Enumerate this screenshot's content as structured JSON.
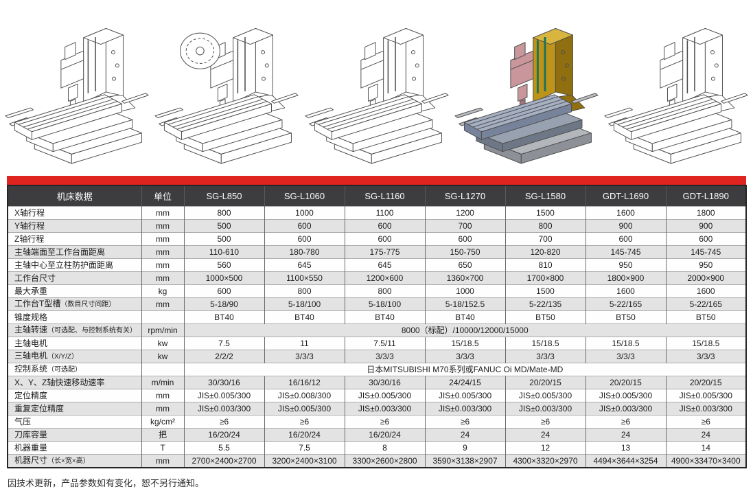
{
  "palette": {
    "accent-red": "#df241f",
    "header-bg": "#3d3d3f",
    "header-text": "#ffffff",
    "row-bg": "#fefefe",
    "row-alt-bg": "#e3e3e3"
  },
  "gallery": {
    "items": [
      {
        "alt": "立式加工中心线框图 1",
        "style": "line"
      },
      {
        "alt": "立式加工中心线框图 2 带刀库圆盘",
        "style": "line-disc"
      },
      {
        "alt": "立式加工中心线框图 3",
        "style": "line"
      },
      {
        "alt": "立式加工中心彩色渲染图",
        "style": "colored"
      },
      {
        "alt": "立式加工中心线框图 5",
        "style": "line"
      }
    ]
  },
  "machine4_style": {
    "f-col": "#bd9318",
    "f-coltop": "#d7b53e",
    "f-colside": "#8f6f10",
    "f-head": "#c9969b",
    "f-headside": "#a87478",
    "f-table": "#a6b0c3",
    "f-tableside": "#77829b",
    "f-saddle": "#98a1b0",
    "f-saddleside": "#6e7785",
    "f-base": "#b3b7bc",
    "f-baseside": "#8d9197",
    "f-railbar": "#b9bdc2",
    "s-rail": "#19715f",
    "w-rail": "3"
  },
  "table": {
    "header": [
      "机床数据",
      "单位",
      "SG-L850",
      "SG-L1060",
      "SG-L1160",
      "SG-L1270",
      "SG-L1580",
      "GDT-L1690",
      "GDT-L1890"
    ],
    "rows": [
      {
        "label": "X轴行程",
        "unit": "mm",
        "values": [
          "800",
          "1000",
          "1100",
          "1200",
          "1500",
          "1600",
          "1800"
        ]
      },
      {
        "label": "Y轴行程",
        "unit": "mm",
        "values": [
          "500",
          "600",
          "600",
          "700",
          "800",
          "900",
          "900"
        ]
      },
      {
        "label": "Z轴行程",
        "unit": "mm",
        "values": [
          "500",
          "600",
          "600",
          "600",
          "700",
          "600",
          "600"
        ]
      },
      {
        "label": "主轴端面至工作台面距离",
        "unit": "mm",
        "values": [
          "110-610",
          "180-780",
          "175-775",
          "150-750",
          "120-820",
          "145-745",
          "145-745"
        ]
      },
      {
        "label": "主轴中心至立柱防护面距离",
        "unit": "mm",
        "values": [
          "560",
          "645",
          "645",
          "650",
          "810",
          "950",
          "950"
        ]
      },
      {
        "label": "工作台尺寸",
        "unit": "mm",
        "values": [
          "1000×500",
          "1100×550",
          "1200×600",
          "1360×700",
          "1700×800",
          "1800×900",
          "2000×900"
        ]
      },
      {
        "label": "最大承重",
        "unit": "kg",
        "values": [
          "600",
          "800",
          "800",
          "1000",
          "1500",
          "1600",
          "1600"
        ]
      },
      {
        "label": "工作台T型槽",
        "note": "（数目尺寸间距）",
        "unit": "mm",
        "values": [
          "5-18/90",
          "5-18/100",
          "5-18/100",
          "5-18/152.5",
          "5-22/135",
          "5-22/165",
          "5-22/165"
        ]
      },
      {
        "label": "锥度规格",
        "unit": "",
        "values": [
          "BT40",
          "BT40",
          "BT40",
          "BT40",
          "BT50",
          "BT50",
          "BT50"
        ]
      },
      {
        "label": "主轴转速",
        "note": "（可选配、与控制系统有关）",
        "unit": "rpm/min",
        "span": "8000（标配）/10000/12000/15000"
      },
      {
        "label": "主轴电机",
        "unit": "kw",
        "values": [
          "7.5",
          "11",
          "7.5/11",
          "15/18.5",
          "15/18.5",
          "15/18.5",
          "15/18.5"
        ]
      },
      {
        "label": "三轴电机",
        "note": "（X/Y/Z）",
        "unit": "kw",
        "values": [
          "2/2/2",
          "3/3/3",
          "3/3/3",
          "3/3/3",
          "3/3/3",
          "3/3/3",
          "3/3/3"
        ]
      },
      {
        "label": "控制系统",
        "note": "（可选配）",
        "unit": "",
        "span": "日本MITSUBISHI M70系列或FANUC Oi MD/Mate-MD"
      },
      {
        "label": "X、Y、Z轴快速移动速率",
        "unit": "m/min",
        "values": [
          "30/30/16",
          "16/16/12",
          "30/30/16",
          "24/24/15",
          "20/20/15",
          "20/20/15",
          "20/20/15"
        ]
      },
      {
        "label": "定位精度",
        "unit": "mm",
        "values": [
          "JIS±0.005/300",
          "JIS±0.008/300",
          "JIS±0.005/300",
          "JIS±0.005/300",
          "JIS±0.005/300",
          "JIS±0.005/300",
          "JIS±0.005/300"
        ]
      },
      {
        "label": "重复定位精度",
        "unit": "mm",
        "values": [
          "JIS±0.003/300",
          "JIS±0.005/300",
          "JIS±0.003/300",
          "JIS±0.003/300",
          "JIS±0.003/300",
          "JIS±0.003/300",
          "JIS±0.003/300"
        ]
      },
      {
        "label": "气压",
        "unit": "kg/cm²",
        "values": [
          "≥6",
          "≥6",
          "≥6",
          "≥6",
          "≥6",
          "≥6",
          "≥6"
        ]
      },
      {
        "label": "刀库容量",
        "unit": "把",
        "values": [
          "16/20/24",
          "16/20/24",
          "16/20/24",
          "24",
          "24",
          "24",
          "24"
        ]
      },
      {
        "label": "机器重量",
        "unit": "T",
        "values": [
          "5.5",
          "7.5",
          "8",
          "9",
          "12",
          "13",
          "14"
        ]
      },
      {
        "label": "机器尺寸",
        "note": "（长×宽×高）",
        "unit": "mm",
        "values": [
          "2700×2400×2700",
          "3200×2400×3100",
          "3300×2600×2800",
          "3590×3138×2907",
          "4300×3320×2970",
          "4494×3644×3254",
          "4900×33470×3400"
        ]
      }
    ]
  },
  "footnote": "因技术更新，产品参数如有变化，恕不另行通知。"
}
